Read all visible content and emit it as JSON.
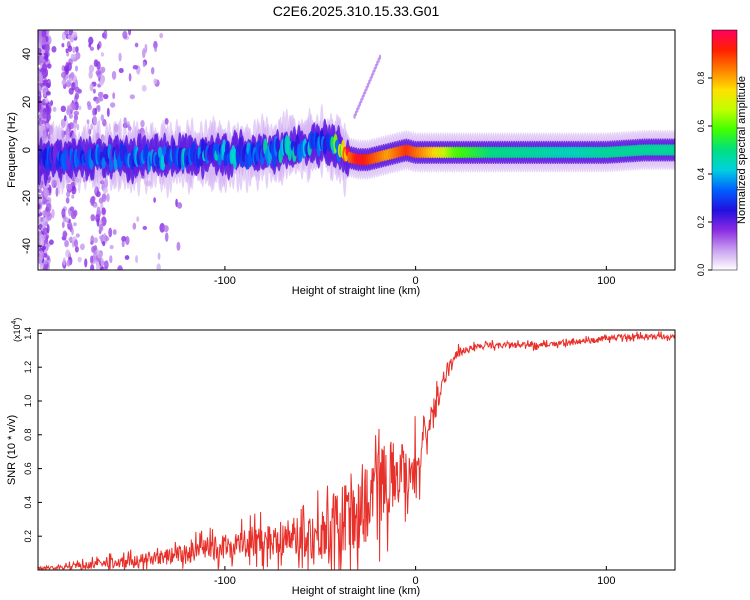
{
  "page_title": "C2E6.2025.310.15.33.G01",
  "chart_data": [
    {
      "type": "heatmap",
      "title": "C2E6.2025.310.15.33.G01",
      "xlabel": "Height of straight line (km)",
      "ylabel": "Frequency (Hz)",
      "xlim": [
        -198,
        136
      ],
      "ylim": [
        -50,
        50
      ],
      "x_ticks": [
        -100,
        0,
        100
      ],
      "x_tick_labels": [
        "-100",
        "0",
        "100"
      ],
      "y_ticks": [
        -40,
        -20,
        0,
        20,
        40
      ],
      "y_tick_labels": [
        "-40",
        "-20",
        "0",
        "20",
        "40"
      ],
      "ridge": {
        "x": [
          -198,
          -180,
          -160,
          -140,
          -120,
          -100,
          -80,
          -60,
          -50,
          -45,
          -40,
          -35,
          -30,
          -25,
          -20,
          -15,
          -10,
          -5,
          0,
          5,
          10,
          20,
          40,
          60,
          80,
          100,
          120,
          136
        ],
        "freq": [
          -4,
          -3,
          -3,
          -3,
          -2,
          -2,
          -1,
          1,
          3,
          2,
          0,
          -3,
          -4,
          -4,
          -3,
          -2,
          -1,
          0,
          -1,
          -1,
          -1,
          -1,
          -1,
          -1,
          -1,
          -1,
          0,
          0
        ],
        "amplitude": [
          0.25,
          0.3,
          0.3,
          0.33,
          0.35,
          0.36,
          0.37,
          0.38,
          0.38,
          0.4,
          0.55,
          0.85,
          0.95,
          0.9,
          0.85,
          0.8,
          0.85,
          0.9,
          0.85,
          0.8,
          0.75,
          0.6,
          0.5,
          0.48,
          0.45,
          0.48,
          0.48,
          0.48
        ]
      },
      "colorbar": {
        "label": "Normalized spectral amplitude",
        "range": [
          0,
          1
        ],
        "ticks": [
          0.0,
          0.2,
          0.4,
          0.6,
          0.8
        ],
        "tick_labels": [
          "0.0",
          "0.2",
          "0.4",
          "0.6",
          "0.8"
        ],
        "colors": [
          "#ffffff",
          "#c9a0f0",
          "#8a2be2",
          "#2010e0",
          "#0060ff",
          "#00d0e0",
          "#00e080",
          "#40ff00",
          "#c0ff00",
          "#ffe000",
          "#ff8000",
          "#ff2000",
          "#ff0060"
        ]
      }
    },
    {
      "type": "line",
      "xlabel": "Height of straight line (km)",
      "ylabel": "SNR (10 * v/v)",
      "y_multiplier_label": "(x10",
      "y_multiplier_exp": "4",
      "y_multiplier_close": ")",
      "xlim": [
        -198,
        136
      ],
      "ylim": [
        0.0,
        1.42
      ],
      "x_ticks": [
        -100,
        0,
        100
      ],
      "x_tick_labels": [
        "-100",
        "0",
        "100"
      ],
      "y_ticks": [
        0.2,
        0.4,
        0.6,
        0.8,
        1.0,
        1.2,
        1.4
      ],
      "y_tick_labels": [
        "0.2",
        "0.4",
        "0.6",
        "0.8",
        "1.0",
        "1.2",
        "1.4"
      ],
      "series": [
        {
          "name": "SNR",
          "color": "#e8302a",
          "x": [
            -198,
            -180,
            -160,
            -140,
            -120,
            -100,
            -80,
            -60,
            -50,
            -40,
            -35,
            -30,
            -25,
            -20,
            -15,
            -10,
            -5,
            0,
            5,
            10,
            15,
            20,
            25,
            30,
            40,
            60,
            80,
            90,
            100,
            110,
            120,
            136
          ],
          "y": [
            0.01,
            0.02,
            0.04,
            0.06,
            0.1,
            0.14,
            0.18,
            0.2,
            0.22,
            0.25,
            0.3,
            0.35,
            0.42,
            0.5,
            0.55,
            0.58,
            0.6,
            0.62,
            0.75,
            0.95,
            1.15,
            1.25,
            1.3,
            1.32,
            1.33,
            1.33,
            1.34,
            1.36,
            1.37,
            1.38,
            1.38,
            1.38
          ],
          "noise": [
            0.01,
            0.02,
            0.04,
            0.05,
            0.07,
            0.09,
            0.12,
            0.15,
            0.2,
            0.3,
            0.35,
            0.35,
            0.3,
            0.3,
            0.28,
            0.25,
            0.22,
            0.2,
            0.15,
            0.1,
            0.06,
            0.05,
            0.03,
            0.02,
            0.02,
            0.02,
            0.02,
            0.02,
            0.02,
            0.02,
            0.02,
            0.02
          ]
        }
      ]
    }
  ]
}
